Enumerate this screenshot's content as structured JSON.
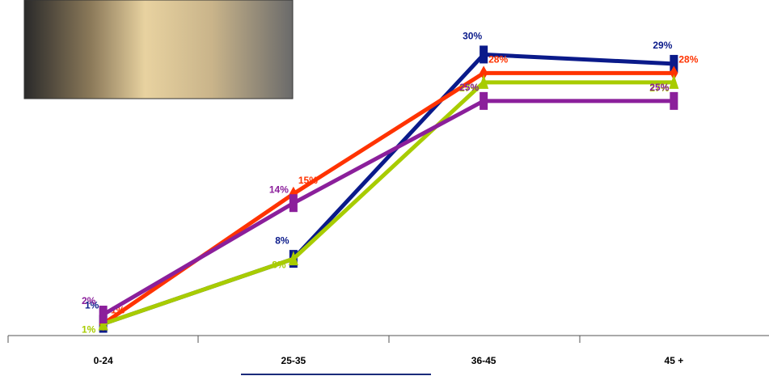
{
  "chart_data": {
    "type": "line",
    "categories": [
      "0-24",
      "25-35",
      "36-45",
      "45 +"
    ],
    "series": [
      {
        "name": null,
        "color": "#0a1a8a",
        "marker": "square",
        "values": [
          1,
          8,
          30,
          29
        ]
      },
      {
        "name": null,
        "color": "#ff3300",
        "marker": "diamond",
        "values": [
          1,
          15,
          28,
          28
        ]
      },
      {
        "name": null,
        "color": "#a8cc00",
        "marker": "triangle",
        "values": [
          1,
          8,
          27,
          27
        ]
      },
      {
        "name": null,
        "color": "#8b1f9b",
        "marker": "square",
        "values": [
          2,
          14,
          25,
          25
        ]
      }
    ],
    "value_labels": [
      [
        "1%",
        "8%",
        "30%",
        "29%"
      ],
      [
        "1%",
        "15%",
        "28%",
        "28%"
      ],
      [
        "1%",
        "8%",
        "27%",
        "27%"
      ],
      [
        "2%",
        "14%",
        "25%",
        "25%"
      ]
    ],
    "ylim": [
      0,
      35
    ]
  }
}
